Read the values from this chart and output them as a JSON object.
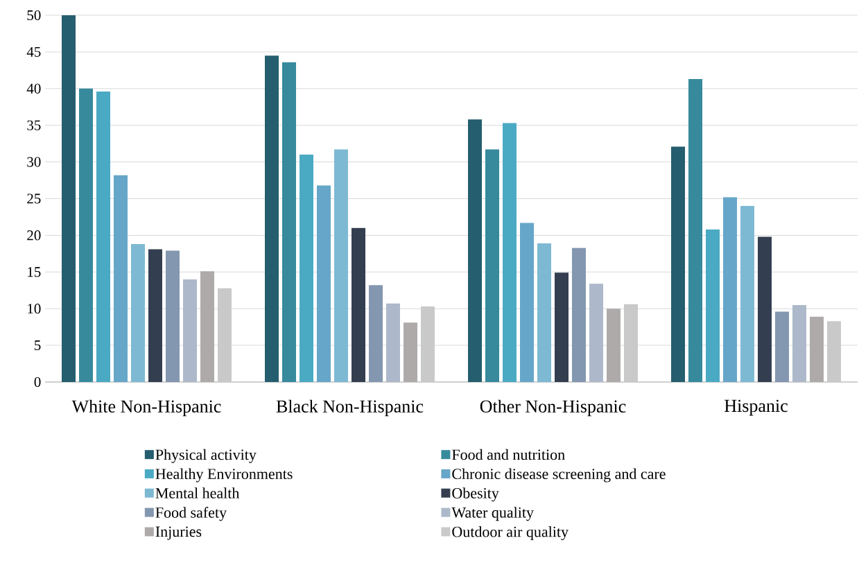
{
  "chart_data": {
    "type": "bar",
    "categories": [
      "White Non-Hispanic",
      "Black Non-Hispanic",
      "Other Non-Hispanic",
      "Hispanic"
    ],
    "series": [
      {
        "name": "Physical activity",
        "color": "#255e6e",
        "values": [
          50,
          44.5,
          35.8,
          32.1
        ]
      },
      {
        "name": "Food and nutrition",
        "color": "#368a9c",
        "values": [
          40,
          43.6,
          31.7,
          41.3
        ]
      },
      {
        "name": "Healthy Environments",
        "color": "#4baac3",
        "values": [
          39.6,
          31.0,
          35.3,
          20.8
        ]
      },
      {
        "name": "Chronic disease screening and care",
        "color": "#66a6c9",
        "values": [
          28.2,
          26.8,
          21.7,
          25.2
        ]
      },
      {
        "name": "Mental health",
        "color": "#7eb9d3",
        "values": [
          18.8,
          31.7,
          18.9,
          24.0
        ]
      },
      {
        "name": "Obesity",
        "color": "#333f50",
        "values": [
          18.1,
          21.0,
          14.9,
          19.8
        ]
      },
      {
        "name": "Food safety",
        "color": "#8497b0",
        "values": [
          17.9,
          13.2,
          18.3,
          9.6
        ]
      },
      {
        "name": "Water quality",
        "color": "#adb9ca",
        "values": [
          14.0,
          10.7,
          13.4,
          10.5
        ]
      },
      {
        "name": "Injuries",
        "color": "#aeaaaa",
        "values": [
          15.1,
          8.1,
          10.0,
          8.9
        ]
      },
      {
        "name": "Outdoor air quality",
        "color": "#c9c9c9",
        "values": [
          12.8,
          10.3,
          10.6,
          8.3
        ]
      }
    ],
    "ylim": [
      0,
      50
    ],
    "yticks": [
      0,
      5,
      10,
      15,
      20,
      25,
      30,
      35,
      40,
      45,
      50
    ],
    "grid": "y",
    "legend": "bottom"
  }
}
